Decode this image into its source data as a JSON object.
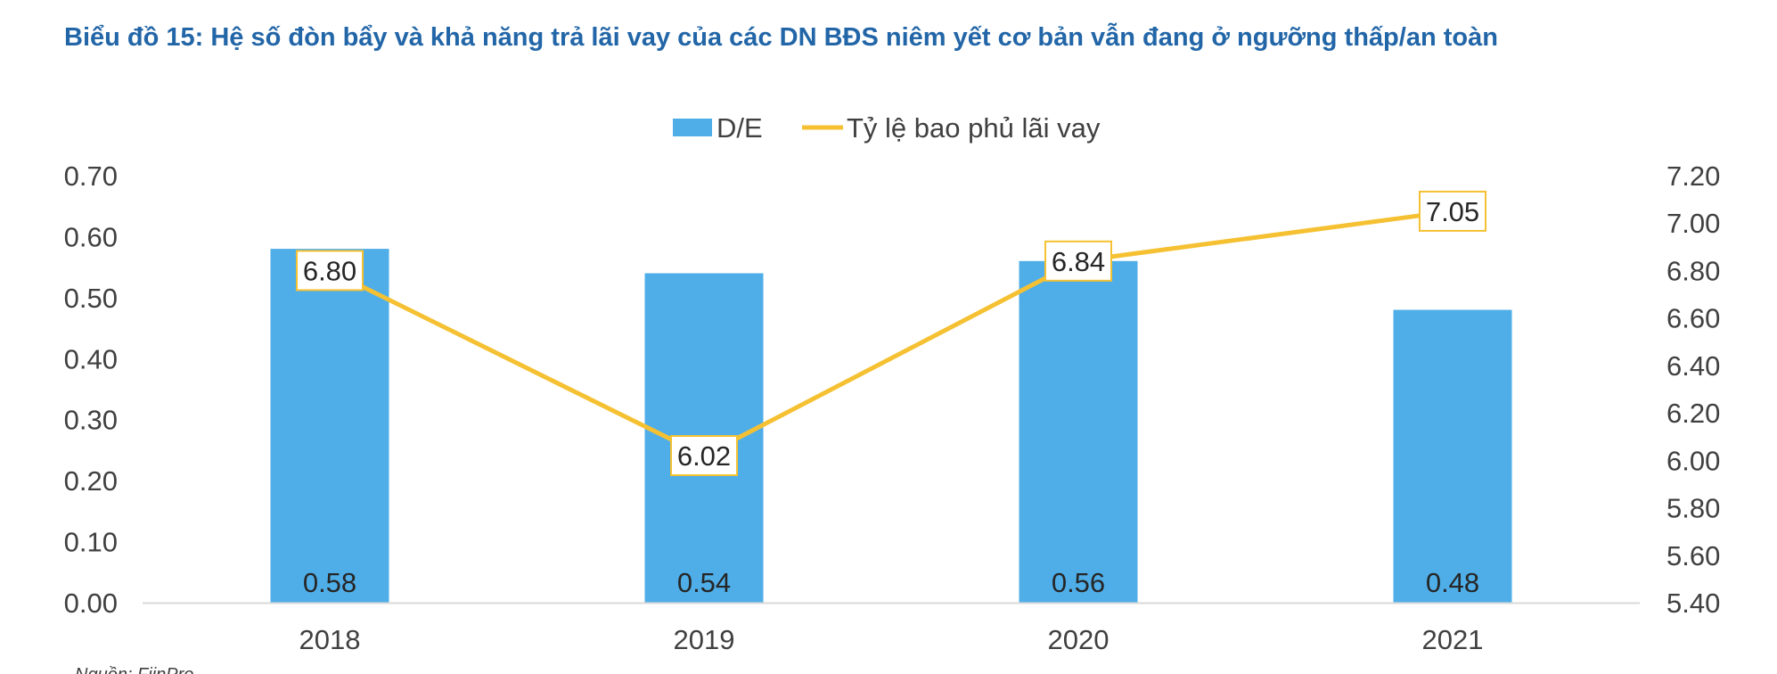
{
  "title": "Biểu đồ 15: Hệ số đòn bẩy và khả năng trả lãi vay của các DN BĐS niêm yết cơ bản vẫn đang ở ngưỡng thấp/an toàn",
  "source": "Nguồn: FiinPro",
  "chart_data": {
    "type": "bar",
    "categories": [
      "2018",
      "2019",
      "2020",
      "2021"
    ],
    "series": [
      {
        "name": "D/E",
        "type": "bar",
        "axis": "left",
        "values": [
          0.58,
          0.54,
          0.56,
          0.48
        ],
        "labels": [
          "0.58",
          "0.54",
          "0.56",
          "0.48"
        ],
        "color": "#4faee8"
      },
      {
        "name": "Tỷ lệ bao phủ lãi vay",
        "type": "line",
        "axis": "right",
        "values": [
          6.8,
          6.02,
          6.84,
          7.05
        ],
        "labels": [
          "6.80",
          "6.02",
          "6.84",
          "7.05"
        ],
        "color": "#f5c132"
      }
    ],
    "y_left": {
      "min": 0,
      "max": 0.7,
      "ticks": [
        "0.00",
        "0.10",
        "0.20",
        "0.30",
        "0.40",
        "0.50",
        "0.60",
        "0.70"
      ]
    },
    "y_right": {
      "min": 5.4,
      "max": 7.2,
      "ticks": [
        "5.40",
        "5.60",
        "5.80",
        "6.00",
        "6.20",
        "6.40",
        "6.60",
        "6.80",
        "7.00",
        "7.20"
      ]
    },
    "xlabel": "",
    "ylabel": "",
    "legend_position": "top-center",
    "grid": false
  }
}
